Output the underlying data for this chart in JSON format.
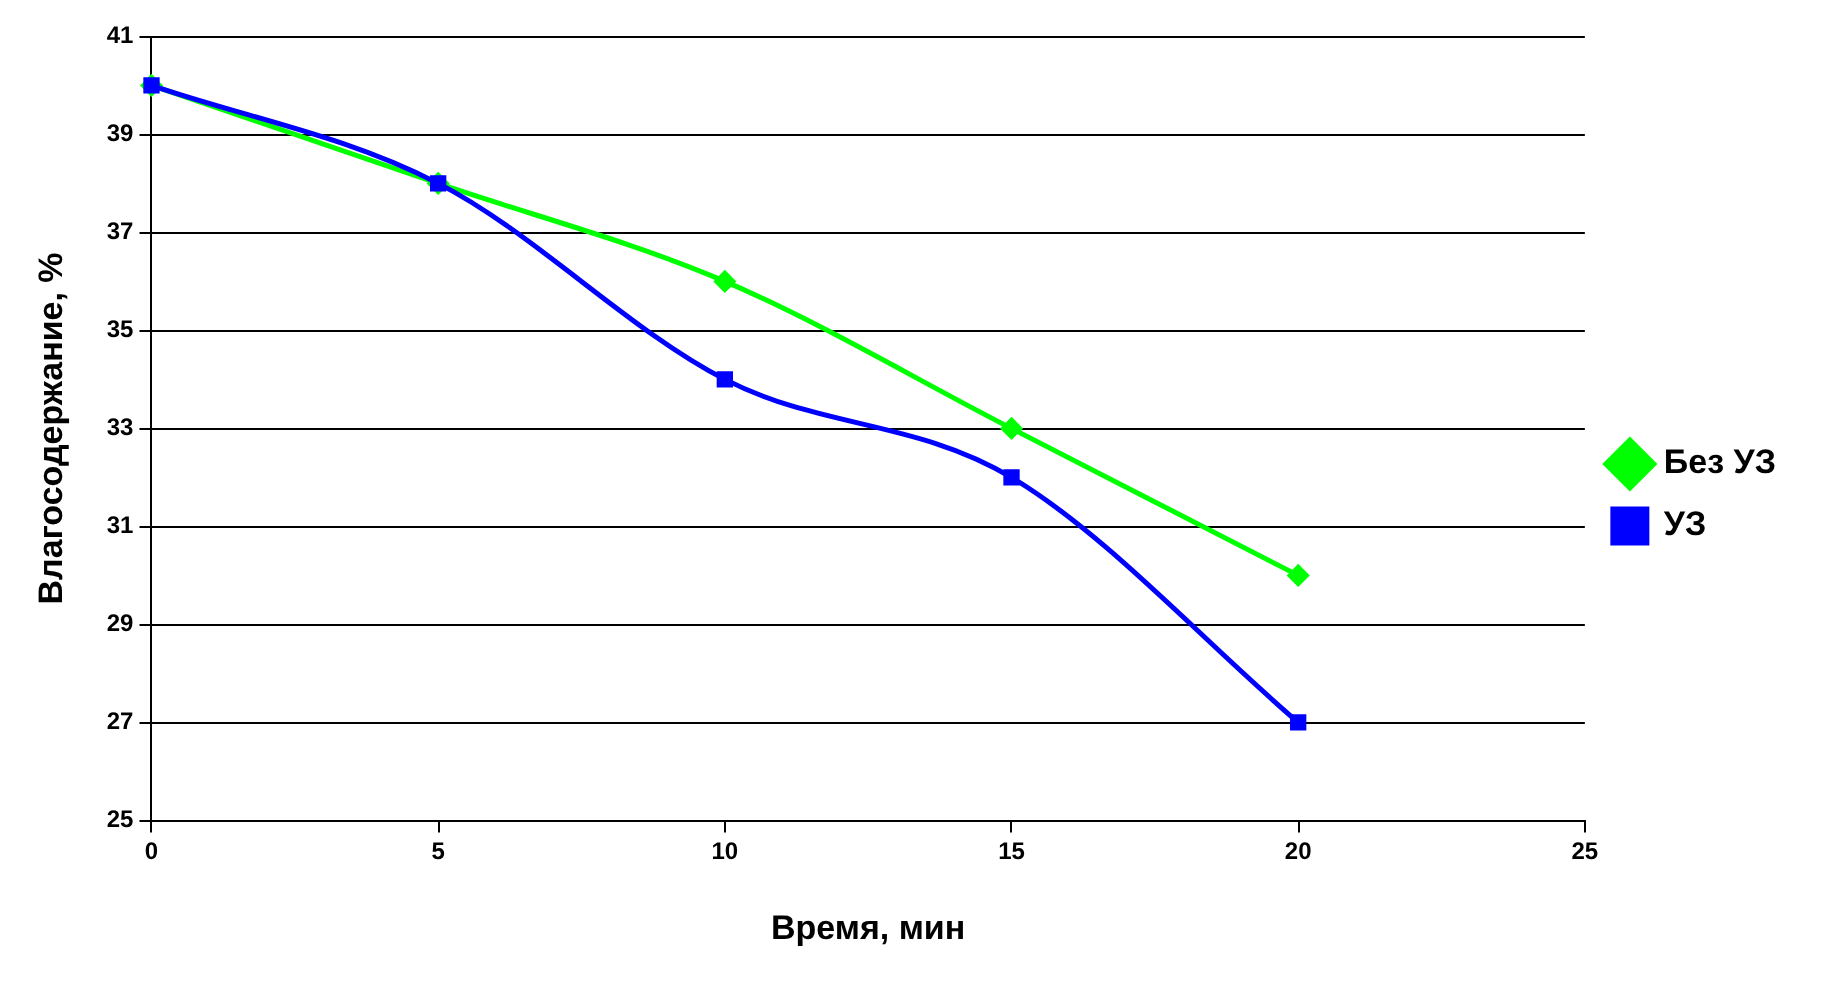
{
  "chart_data": {
    "type": "line",
    "xlabel": "Время, мин",
    "ylabel": "Влагосодержание, %",
    "x": [
      0,
      5,
      10,
      15,
      20
    ],
    "series": [
      {
        "name": "Без УЗ",
        "color": "#00ff00",
        "marker": "diamond",
        "values": [
          40,
          38,
          36,
          33,
          30
        ]
      },
      {
        "name": "УЗ",
        "color": "#0000ff",
        "marker": "square",
        "values": [
          40,
          38,
          34,
          32,
          27
        ]
      }
    ],
    "xlim": [
      0,
      25
    ],
    "xticks": [
      0,
      5,
      10,
      15,
      20,
      25
    ],
    "ylim": [
      25,
      41
    ],
    "yticks": [
      25,
      27,
      29,
      31,
      33,
      35,
      37,
      39,
      41
    ],
    "grid": "y",
    "legend": "right"
  }
}
